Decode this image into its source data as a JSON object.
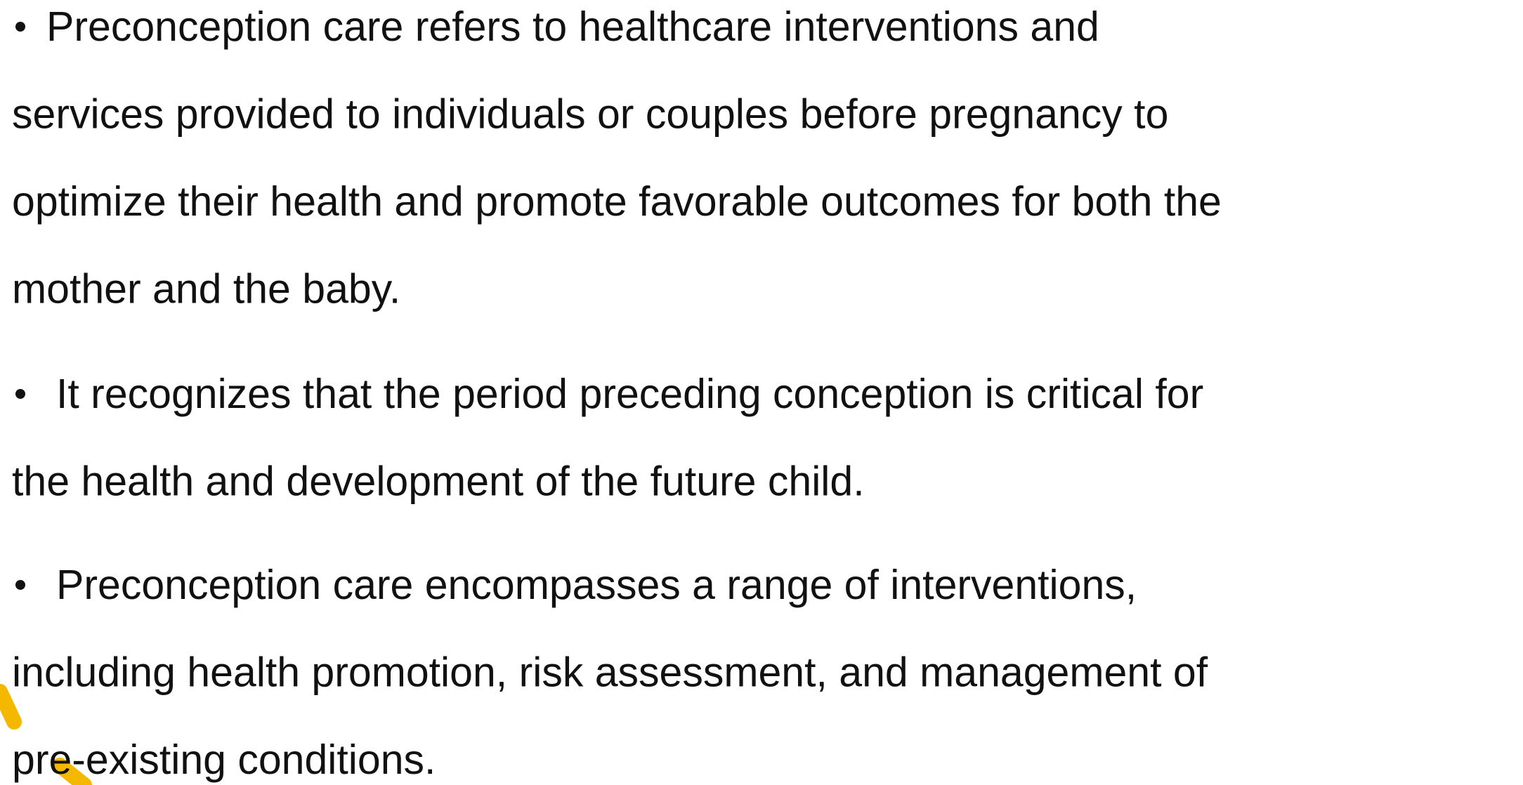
{
  "bullets": [
    {
      "lines": [
        "Preconception care refers to healthcare interventions and",
        "services provided to individuals or couples before pregnancy to",
        "optimize their health and promote favorable outcomes for both the",
        "mother and the baby."
      ]
    },
    {
      "lines": [
        "It recognizes that the period preceding conception is critical for",
        "the health and development of the future child."
      ]
    },
    {
      "lines": [
        "Preconception care encompasses a range of interventions,",
        "including health promotion, risk assessment, and management of",
        "pre-existing conditions."
      ]
    }
  ]
}
